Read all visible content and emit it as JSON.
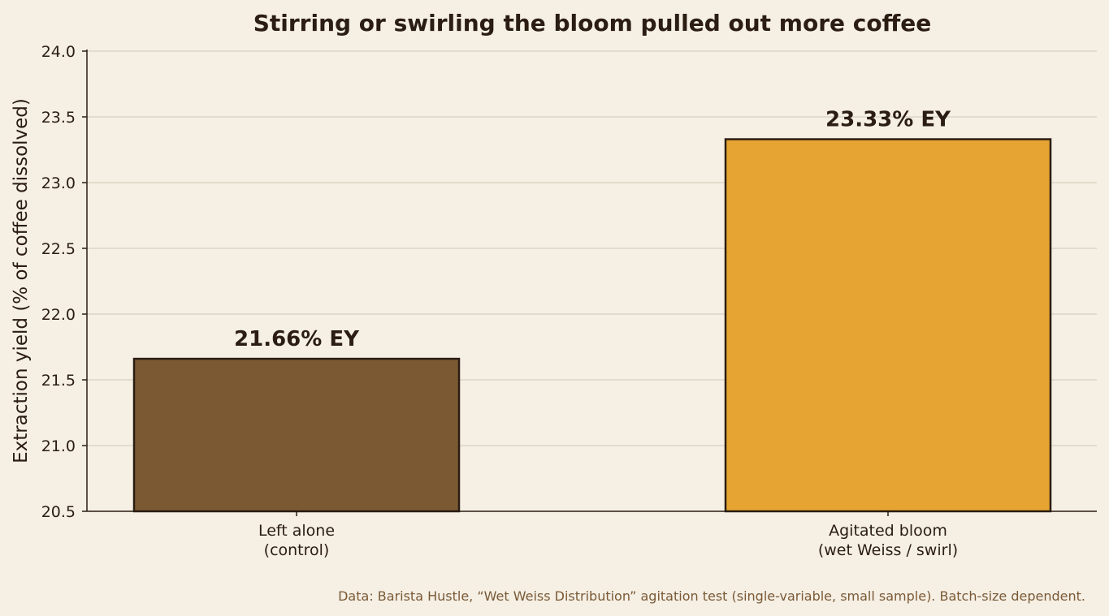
{
  "chart_data": {
    "type": "bar",
    "title": "Stirring or swirling the bloom pulled out more coffee",
    "ylabel": "Extraction yield (% of coffee dissolved)",
    "xlabel": "",
    "ylim": [
      20.5,
      24.0
    ],
    "yticks": [
      "20.5",
      "21.0",
      "21.5",
      "22.0",
      "22.5",
      "23.0",
      "23.5",
      "24.0"
    ],
    "grid": "horizontal",
    "categories": [
      [
        "Left alone",
        "(control)"
      ],
      [
        "Agitated bloom",
        "(wet Weiss / swirl)"
      ]
    ],
    "values": [
      21.66,
      23.33
    ],
    "data_labels": [
      "21.66% EY",
      "23.33% EY"
    ],
    "colors": [
      "#7b5a33",
      "#e6a532"
    ],
    "source": "Data: Barista Hustle, “Wet Weiss Distribution” agitation test (single-variable, small sample). Batch-size dependent."
  }
}
